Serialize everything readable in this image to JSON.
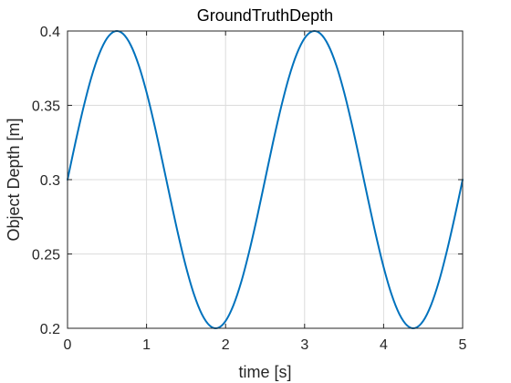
{
  "chart_data": {
    "type": "line",
    "title": "GroundTruthDepth",
    "xlabel": "time [s]",
    "ylabel": "Object Depth [m]",
    "xlim": [
      0,
      5
    ],
    "ylim": [
      0.2,
      0.4
    ],
    "grid": true,
    "x_ticks": [
      0,
      1,
      2,
      3,
      4,
      5
    ],
    "y_ticks": [
      0.2,
      0.25,
      0.3,
      0.35,
      0.4
    ],
    "x_tick_labels": [
      "0",
      "1",
      "2",
      "3",
      "4",
      "5"
    ],
    "y_tick_labels": [
      "0.2",
      "0.25",
      "0.3",
      "0.35",
      "0.4"
    ],
    "series": [
      {
        "color": "#0072BD",
        "x": [
          0.0,
          0.1,
          0.2,
          0.3,
          0.4,
          0.5,
          0.6,
          0.7,
          0.8,
          0.9,
          1.0,
          1.1,
          1.2,
          1.3,
          1.4,
          1.5,
          1.6,
          1.7,
          1.8,
          1.9,
          2.0,
          2.1,
          2.2,
          2.3,
          2.4,
          2.5,
          2.6,
          2.7,
          2.8,
          2.9,
          3.0,
          3.1,
          3.2,
          3.3,
          3.4,
          3.5,
          3.6,
          3.7,
          3.8,
          3.9,
          4.0,
          4.1,
          4.2,
          4.3,
          4.4,
          4.5,
          4.6,
          4.7,
          4.8,
          4.9,
          5.0
        ],
        "y": [
          0.3,
          0.325,
          0.3482,
          0.3685,
          0.3844,
          0.3951,
          0.3998,
          0.3982,
          0.3905,
          0.3771,
          0.3588,
          0.3368,
          0.3125,
          0.2875,
          0.2632,
          0.2412,
          0.2229,
          0.2095,
          0.2018,
          0.2002,
          0.2049,
          0.2156,
          0.2315,
          0.2518,
          0.275,
          0.3,
          0.325,
          0.3482,
          0.3685,
          0.3844,
          0.3951,
          0.3998,
          0.3982,
          0.3905,
          0.3771,
          0.3588,
          0.3368,
          0.3125,
          0.2875,
          0.2632,
          0.2412,
          0.2229,
          0.2095,
          0.2018,
          0.2002,
          0.2049,
          0.2156,
          0.2315,
          0.2518,
          0.275,
          0.3
        ]
      }
    ]
  }
}
